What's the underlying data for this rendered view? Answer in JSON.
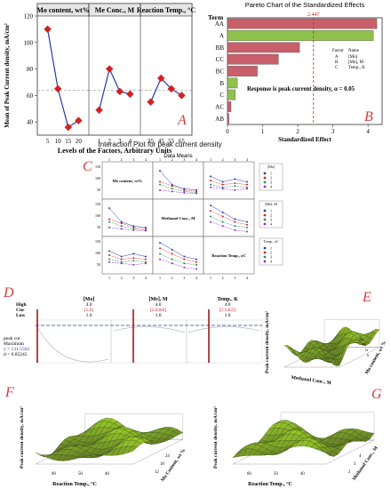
{
  "panelA": {
    "letter": "A",
    "ylabel": "Mean of Peak Current density, mA/cm²",
    "xlabel": "Levels of the Factors, Arbitrary Units",
    "ylim": [
      30,
      120
    ],
    "yticks": [
      "40",
      "60",
      "80",
      "100",
      "120"
    ],
    "refline": 64,
    "factors": [
      {
        "header": "Mo content, wt%",
        "x": [
          "5",
          "10",
          "15",
          "20"
        ],
        "values": [
          110,
          65,
          36,
          41
        ]
      },
      {
        "header": "Me Conc., M",
        "x": [
          "1",
          "2",
          "3",
          "4"
        ],
        "values": [
          49,
          80,
          63,
          61
        ]
      },
      {
        "header": "Reaction Temp., °C",
        "x": [
          "35",
          "45",
          "55",
          "65"
        ],
        "values": [
          55,
          73,
          65,
          60
        ]
      }
    ],
    "colors": {
      "line": "#2b3aa8",
      "marker": "#d42020"
    }
  },
  "panelB": {
    "letter": "B",
    "title": "Pareto Chart of the Standardized Effects",
    "ylabel": "Term",
    "xlabel": "Standardized Effect",
    "threshold_label": "2.447",
    "threshold": 2.447,
    "xlim": [
      0,
      4.4
    ],
    "xticks": [
      "0",
      "1",
      "2",
      "3",
      "4"
    ],
    "terms": [
      {
        "term": "AA",
        "value": 4.25,
        "color": "#c95f6a"
      },
      {
        "term": "A",
        "value": 4.15,
        "color": "#8fc24c"
      },
      {
        "term": "BB",
        "value": 2.05,
        "color": "#c95f6a"
      },
      {
        "term": "CC",
        "value": 1.45,
        "color": "#c95f6a"
      },
      {
        "term": "BC",
        "value": 0.85,
        "color": "#c95f6a"
      },
      {
        "term": "B",
        "value": 0.28,
        "color": "#8fc24c"
      },
      {
        "term": "C",
        "value": 0.22,
        "color": "#8fc24c"
      },
      {
        "term": "AC",
        "value": 0.1,
        "color": "#c95f6a"
      },
      {
        "term": "AB",
        "value": 0.04,
        "color": "#c95f6a"
      }
    ],
    "legend": {
      "header_factor": "Factor",
      "header_name": "Name",
      "rows": [
        {
          "factor": "A",
          "name": "[Mo]"
        },
        {
          "factor": "B",
          "name": "[Me], M"
        },
        {
          "factor": "C",
          "name": "Temp., K"
        }
      ]
    },
    "note": "Response is peak current density, α = 0.05"
  },
  "panelC": {
    "letter": "C",
    "title": "Interaction Plot for peak current density",
    "subtitle": "Data Means",
    "diag": [
      "Mo content, wt%",
      "Methanol Conc., M",
      "Reaction Temp., oC"
    ],
    "levels": [
      "1",
      "2",
      "3",
      "4"
    ],
    "yticks": [
      "150",
      "100",
      "50"
    ],
    "legends": [
      {
        "title": "[Mo]",
        "items": [
          "1",
          "2",
          "3",
          "4"
        ]
      },
      {
        "title": "[Me], M",
        "items": [
          "1",
          "2",
          "3",
          "4"
        ]
      },
      {
        "title": "Temp., oC",
        "items": [
          "1",
          "2",
          "3",
          "4"
        ]
      }
    ],
    "colors": [
      "#2b3aa8",
      "#d42020",
      "#2e8b57",
      "#8a2be2"
    ]
  },
  "panelD": {
    "letter": "D",
    "rows": [
      "High",
      "Cur",
      "Low"
    ],
    "cols": [
      {
        "name": "[Mo]",
        "high": "4.0",
        "cur": "[1.0]",
        "low": "1.0"
      },
      {
        "name": "[Me], M",
        "high": "4.0",
        "cur": "[2.6364]",
        "low": "1.0"
      },
      {
        "name": "Temp., K",
        "high": "4.0",
        "cur": "[2.5455]",
        "low": "1.0"
      }
    ],
    "response": "peak cur",
    "goal": "Maximum",
    "y_text": "y = 131.5562",
    "d_text": "d = 0.85245"
  },
  "panelE": {
    "letter": "E",
    "zlabel": "Peak current density, mA/cm²",
    "xlabel": "Methanol Conc., M",
    "ylabel": "Mo content, wt %",
    "yticks": [
      "24",
      "18",
      "12",
      "6"
    ]
  },
  "panelF": {
    "letter": "F",
    "zlabel": "Peak current density, mA/cm²",
    "xlabel": "Reaction Temp., °C",
    "ylabel": "Mo Content, wt %",
    "xticks": [
      "60",
      "50",
      "40"
    ],
    "yticks": [
      "12",
      "18",
      "24"
    ]
  },
  "panelG": {
    "letter": "G",
    "zlabel": "Peak current density, mA/cm²",
    "xlabel": "Reaction Temp., °C",
    "ylabel": "Methanol Conc., M",
    "xticks": [
      "60",
      "50",
      "40"
    ],
    "yticks": [
      "2",
      "3",
      "4"
    ]
  },
  "chart_data": [
    {
      "type": "line",
      "title": "",
      "xlabel": "Levels of the Factors, Arbitrary Units",
      "ylabel": "Mean of Peak Current density, mA/cm²",
      "ylim": [
        30,
        120
      ],
      "series": [
        {
          "name": "Mo content, wt%",
          "x": [
            "5",
            "10",
            "15",
            "20"
          ],
          "values": [
            110,
            65,
            36,
            41
          ]
        },
        {
          "name": "Me Conc., M",
          "x": [
            "1",
            "2",
            "3",
            "4"
          ],
          "values": [
            49,
            80,
            63,
            61
          ]
        },
        {
          "name": "Reaction Temp., °C",
          "x": [
            "35",
            "45",
            "55",
            "65"
          ],
          "values": [
            55,
            73,
            65,
            60
          ]
        }
      ]
    },
    {
      "type": "bar",
      "title": "Pareto Chart of the Standardized Effects",
      "xlabel": "Standardized Effect",
      "ylabel": "Term",
      "categories": [
        "AA",
        "A",
        "BB",
        "CC",
        "BC",
        "B",
        "C",
        "AC",
        "AB"
      ],
      "values": [
        4.25,
        4.15,
        2.05,
        1.45,
        0.85,
        0.28,
        0.22,
        0.1,
        0.04
      ],
      "threshold": 2.447,
      "xlim": [
        0,
        4.4
      ]
    }
  ]
}
